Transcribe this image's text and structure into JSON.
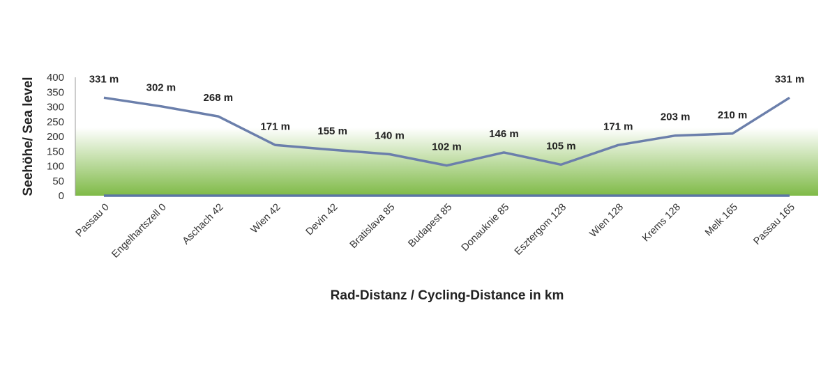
{
  "chart_data": {
    "type": "line",
    "xlabel": "Rad-Distanz / Cycling-Distance in km",
    "ylabel": "Seehöhe/ Sea level",
    "ylim": [
      0,
      400
    ],
    "yticks": [
      0,
      50,
      100,
      150,
      200,
      250,
      300,
      350,
      400
    ],
    "grid": false,
    "categories": [
      "Passau 0",
      "Engelhartszell 0",
      "Aschach 42",
      "Wien 42",
      "Devin 42",
      "Bratislava 85",
      "Budapest 85",
      "Donauknie 85",
      "Esztergom 128",
      "Wien 128",
      "Krems 128",
      "Melk 165",
      "Passau 165"
    ],
    "series": [
      {
        "values": [
          331,
          302,
          268,
          171,
          155,
          140,
          102,
          146,
          105,
          171,
          203,
          210,
          331
        ],
        "data_labels": [
          "331 m",
          "302 m",
          "268 m",
          "171 m",
          "155 m",
          "140 m",
          "102 m",
          "146 m",
          "105 m",
          "171 m",
          "203 m",
          "210 m",
          "331 m"
        ]
      }
    ],
    "colors": {
      "line": "#6b7fab",
      "baseline": "#5b75a5",
      "fill_top": "#ffffff",
      "fill_bottom": "#7fba47"
    },
    "background_band_top_value": 230
  }
}
